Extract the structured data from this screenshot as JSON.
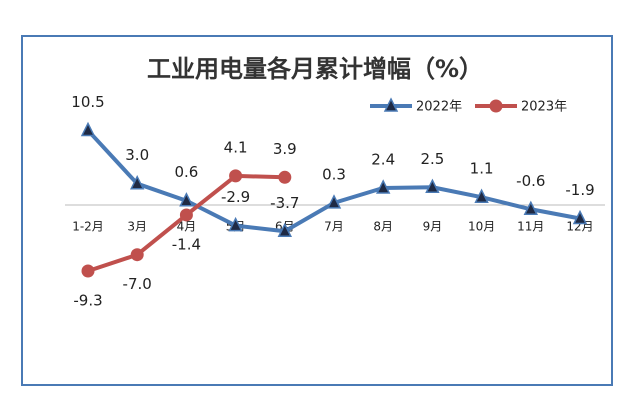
{
  "chart_data": {
    "type": "line",
    "title": "工业用电量各月累计增幅（%）",
    "categories": [
      "1-2月",
      "3月",
      "4月",
      "5月",
      "6月",
      "7月",
      "8月",
      "9月",
      "10月",
      "11月",
      "12月"
    ],
    "series": [
      {
        "name": "2022年",
        "color": "#4a7ab5",
        "marker": "triangle",
        "values": [
          10.5,
          3.0,
          0.6,
          -2.9,
          -3.7,
          0.3,
          2.4,
          2.5,
          1.1,
          -0.6,
          -1.9
        ],
        "value_labels": [
          "10.5",
          "3.0",
          "0.6",
          "-2.9",
          "-3.7",
          "0.3",
          "2.4",
          "2.5",
          "1.1",
          "-0.6",
          "-1.9"
        ]
      },
      {
        "name": "2023年",
        "color": "#c0504d",
        "marker": "circle",
        "values": [
          -9.3,
          -7.0,
          -1.4,
          4.1,
          3.9,
          null,
          null,
          null,
          null,
          null,
          null
        ],
        "value_labels": [
          "-9.3",
          "-7.0",
          "-1.4",
          "4.1",
          "3.9",
          null,
          null,
          null,
          null,
          null,
          null
        ]
      }
    ],
    "legend": "top-right"
  }
}
